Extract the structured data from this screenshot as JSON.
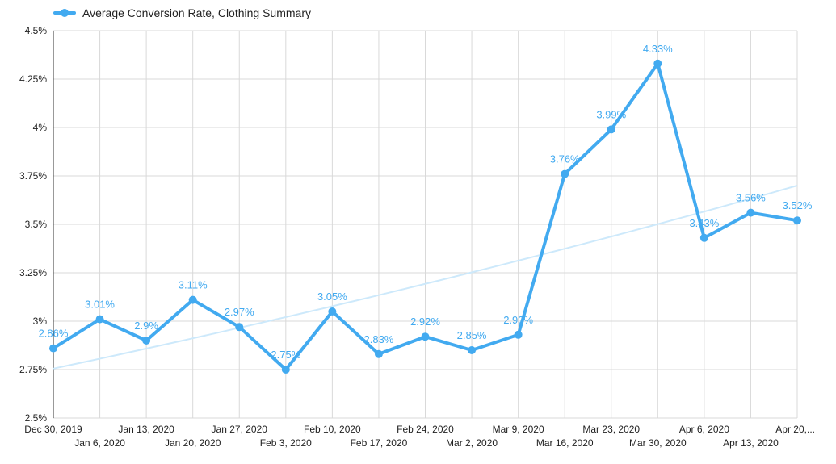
{
  "chart_data": {
    "type": "line",
    "title": "",
    "xlabel": "",
    "ylabel": "",
    "legend_position": "top-left",
    "grid": true,
    "ylim": [
      2.5,
      4.5
    ],
    "yticks": [
      2.5,
      2.75,
      3,
      3.25,
      3.5,
      3.75,
      4,
      4.25,
      4.5
    ],
    "ytick_labels": [
      "2.5%",
      "2.75%",
      "3%",
      "3.25%",
      "3.5%",
      "3.75%",
      "4%",
      "4.25%",
      "4.5%"
    ],
    "categories": [
      "Dec 30, 2019",
      "Jan 6, 2020",
      "Jan 13, 2020",
      "Jan 20, 2020",
      "Jan 27, 2020",
      "Feb 3, 2020",
      "Feb 10, 2020",
      "Feb 17, 2020",
      "Feb 24, 2020",
      "Mar 2, 2020",
      "Mar 9, 2020",
      "Mar 16, 2020",
      "Mar 23, 2020",
      "Mar 30, 2020",
      "Apr 6, 2020",
      "Apr 13, 2020",
      "Apr 20,..."
    ],
    "series": [
      {
        "name": "Average Conversion Rate, Clothing Summary",
        "color": "#42aaf0",
        "values": [
          2.86,
          3.01,
          2.9,
          3.11,
          2.97,
          2.75,
          3.05,
          2.83,
          2.92,
          2.85,
          2.93,
          3.76,
          3.99,
          4.33,
          3.43,
          3.56,
          3.52
        ],
        "labels": [
          "2.86%",
          "3.01%",
          "2.9%",
          "3.11%",
          "2.97%",
          "2.75%",
          "3.05%",
          "2.83%",
          "2.92%",
          "2.85%",
          "2.93%",
          "3.76%",
          "3.99%",
          "4.33%",
          "3.43%",
          "3.56%",
          "3.52%"
        ]
      }
    ],
    "trendline": {
      "type": "exponential",
      "color": "#cde9fb",
      "start_value": 2.755,
      "end_value": 3.7
    }
  }
}
